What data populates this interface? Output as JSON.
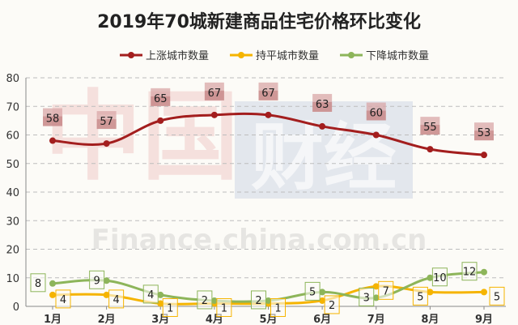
{
  "chart_data": {
    "type": "line",
    "title": "2019年70城新建商品住宅价格环比变化",
    "categories": [
      "1月",
      "2月",
      "3月",
      "4月",
      "5月",
      "6月",
      "7月",
      "8月",
      "9月"
    ],
    "ylim": [
      0,
      80
    ],
    "yticks": [
      0,
      10,
      20,
      30,
      40,
      50,
      60,
      70,
      80
    ],
    "grid": true,
    "legend_position": "top-center",
    "series": [
      {
        "name": "上涨城市数量",
        "color": "#a31e1e",
        "values": [
          58,
          57,
          65,
          67,
          67,
          63,
          60,
          55,
          53
        ]
      },
      {
        "name": "持平城市数量",
        "color": "#f5b400",
        "values": [
          4,
          4,
          1,
          1,
          1,
          2,
          7,
          5,
          5
        ]
      },
      {
        "name": "下降城市数量",
        "color": "#8db55a",
        "values": [
          8,
          9,
          4,
          2,
          2,
          5,
          3,
          10,
          12
        ]
      }
    ],
    "watermark": [
      "中国",
      "财经",
      "Finance.china.com.cn"
    ]
  }
}
